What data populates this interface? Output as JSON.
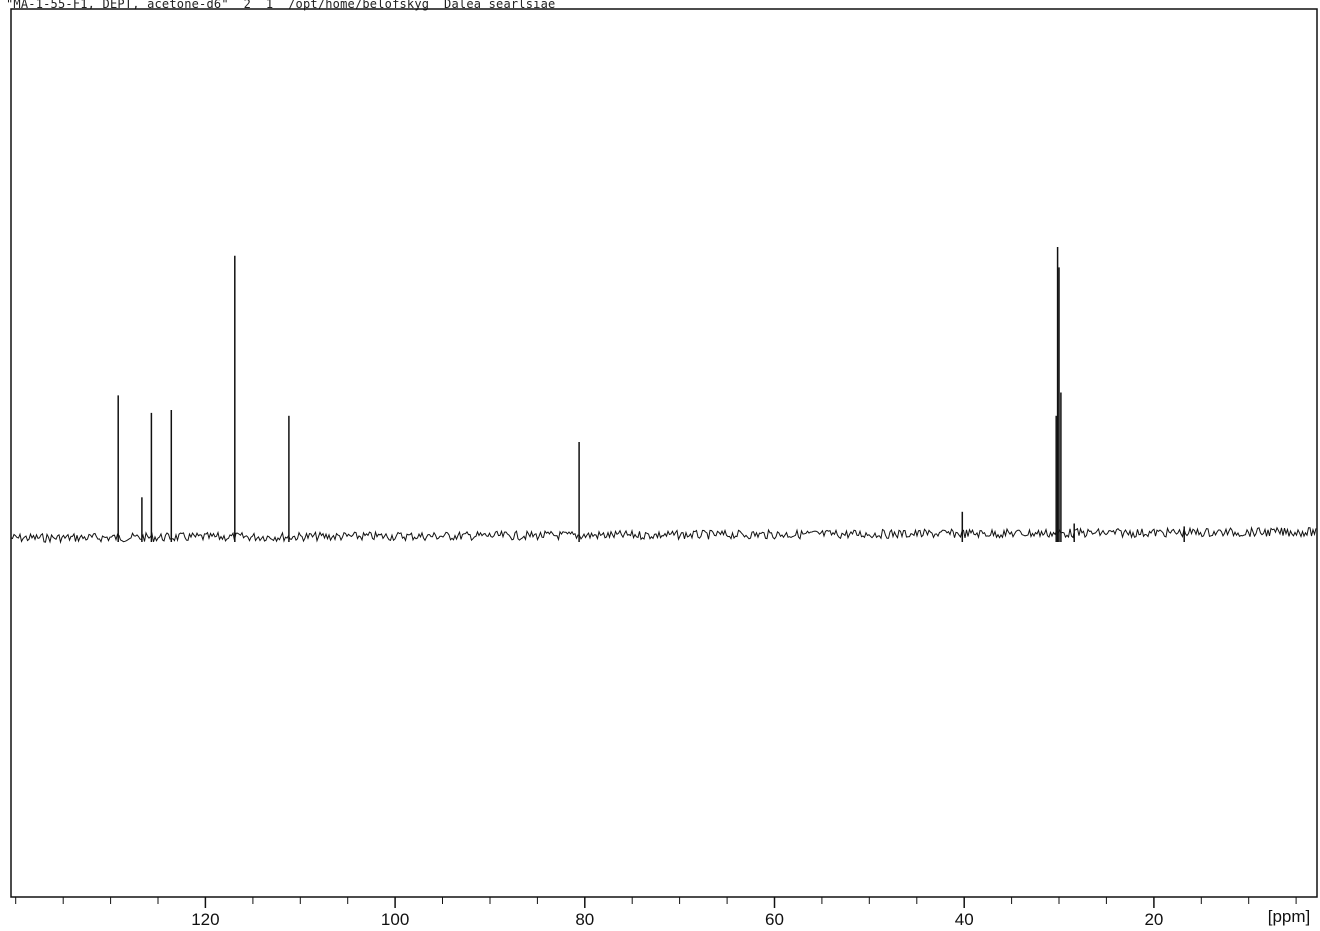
{
  "header": {
    "text": "\"MA-1-55-F1, DEPT, acetone-d6\"  2  1  /opt/home/belofskyg  Dalea searlsiae"
  },
  "chart_data": {
    "type": "line",
    "title": "\"MA-1-55-F1, DEPT, acetone-d6\"  2  1  /opt/home/belofskyg  Dalea searlsiae",
    "xlabel": "[ppm]",
    "ylabel": "",
    "x_axis_reversed": true,
    "xlim": [
      140.5,
      2.8
    ],
    "ylim": [
      0,
      1.0
    ],
    "grid": false,
    "xticks_major": [
      120,
      100,
      80,
      60,
      40,
      20
    ],
    "xtick_minor_step": 5,
    "unit_label": "[ppm]",
    "peaks": [
      {
        "ppm": 129.2,
        "intensity": 0.49
      },
      {
        "ppm": 126.7,
        "intensity": 0.14
      },
      {
        "ppm": 125.7,
        "intensity": 0.43
      },
      {
        "ppm": 123.6,
        "intensity": 0.44
      },
      {
        "ppm": 116.9,
        "intensity": 0.97
      },
      {
        "ppm": 111.2,
        "intensity": 0.42
      },
      {
        "ppm": 80.6,
        "intensity": 0.33
      },
      {
        "ppm": 40.2,
        "intensity": 0.09
      },
      {
        "ppm": 30.3,
        "intensity": 0.42
      },
      {
        "ppm": 30.15,
        "intensity": 1.0
      },
      {
        "ppm": 30.0,
        "intensity": 0.93
      },
      {
        "ppm": 29.8,
        "intensity": 0.5
      },
      {
        "ppm": 28.4,
        "intensity": 0.05
      },
      {
        "ppm": 16.8,
        "intensity": 0.04
      }
    ]
  }
}
